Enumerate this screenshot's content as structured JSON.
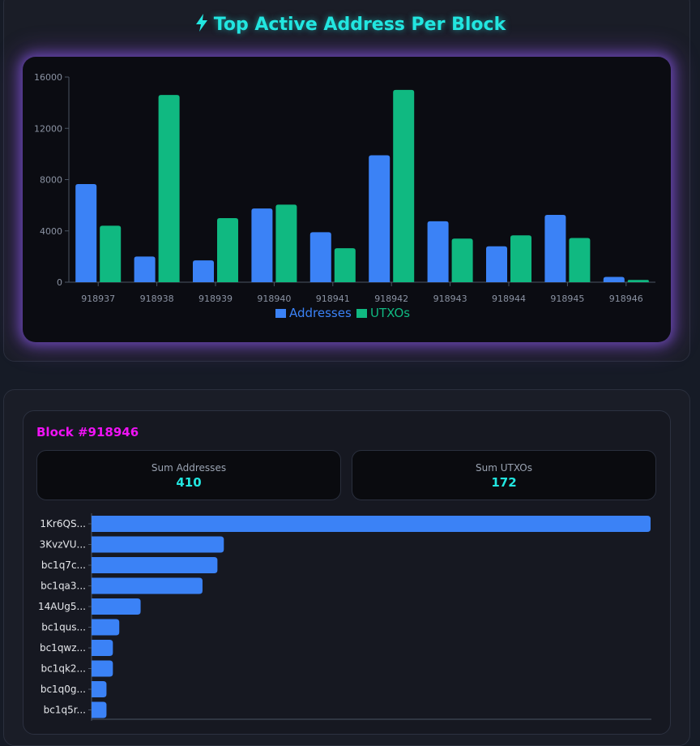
{
  "header": {
    "title": "Top Active Address Per Block",
    "icon": "lightning-icon"
  },
  "chart_data": [
    {
      "type": "bar",
      "title": "Top Active Address Per Block",
      "categories": [
        "918937",
        "918938",
        "918939",
        "918940",
        "918941",
        "918942",
        "918943",
        "918944",
        "918945",
        "918946"
      ],
      "series": [
        {
          "name": "Addresses",
          "color": "#3b82f6",
          "values": [
            7650,
            2000,
            1700,
            5750,
            3900,
            9900,
            4750,
            2800,
            5250,
            410
          ]
        },
        {
          "name": "UTXOs",
          "color": "#10b981",
          "values": [
            4400,
            14600,
            5000,
            6050,
            2650,
            15000,
            3400,
            3650,
            3450,
            172
          ]
        }
      ],
      "yticks": [
        0,
        4000,
        8000,
        12000,
        16000
      ],
      "ylim": [
        0,
        16000
      ],
      "legend": "bottom"
    },
    {
      "type": "bar",
      "orientation": "horizontal",
      "title": "Block #918946",
      "categories": [
        "1Kr6QS...",
        "3KvzVU...",
        "bc1q7c...",
        "bc1qa3...",
        "14AUg5...",
        "bc1qus...",
        "bc1qwz...",
        "bc1qk2...",
        "bc1q0g...",
        "bc1q5r..."
      ],
      "series": [
        {
          "name": "Addresses",
          "color": "#3b82f6",
          "values": [
            262,
            62,
            59,
            52,
            23,
            13,
            10,
            10,
            7,
            7
          ]
        }
      ]
    }
  ],
  "block": {
    "title": "Block #918946",
    "sum_addresses_label": "Sum Addresses",
    "sum_addresses_value": "410",
    "sum_utxos_label": "Sum UTXOs",
    "sum_utxos_value": "172"
  }
}
